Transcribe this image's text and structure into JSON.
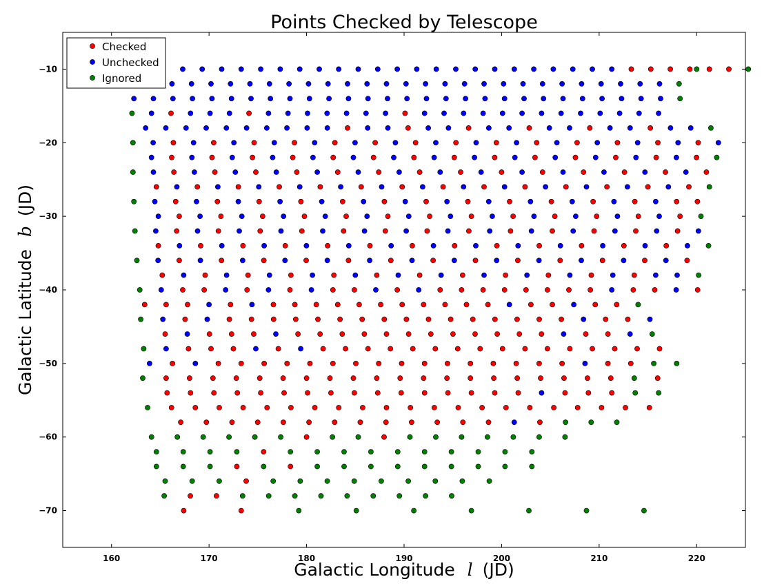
{
  "chart_data": {
    "type": "scatter",
    "title": "Points Checked by Telescope",
    "xlabel": {
      "prefix": "Galactic Longitude",
      "var": "l",
      "suffix": "(JD)"
    },
    "ylabel": {
      "prefix": "Galactic Latitude",
      "var": "b",
      "suffix": "(JD)"
    },
    "xlim": [
      155,
      225
    ],
    "ylim": [
      -75,
      -5
    ],
    "xticks": [
      160,
      170,
      180,
      190,
      200,
      210,
      220
    ],
    "yticks": [
      -10,
      -20,
      -30,
      -40,
      -50,
      -60,
      -70
    ],
    "grid": false,
    "legend": {
      "placement": "top-left"
    },
    "series": [
      {
        "name": "Checked",
        "color": "#ff0000"
      },
      {
        "name": "Unchecked",
        "color": "#0000ff"
      },
      {
        "name": "Ignored",
        "color": "#008000"
      }
    ],
    "rows": [
      {
        "b": -10,
        "x0": 167.3,
        "dx": 2.0,
        "codes": "UUUUUUUUUUUUUUUUUUUUUUUCCCCCCG"
      },
      {
        "b": -12,
        "x0": 166.2,
        "dx": 2.0,
        "codes": "UUUUUUUUUUUUUUUUUUUUUUUUUUG"
      },
      {
        "b": -14,
        "x0": 162.3,
        "dx": 2.0,
        "codes": "UUUUUUUUUUUUUUUUUUUUUUUUUUUUG"
      },
      {
        "b": -16,
        "x0": 162.1,
        "dx": 2.0,
        "codes": "GUCUUUCUUUUUUUCUUUUUUUUUUUUU"
      },
      {
        "b": -18,
        "x0": 163.5,
        "dx": 2.07,
        "codes": "UUUUUUUUUUCUUCUUCUUCUUCUUCUUG"
      },
      {
        "b": -20,
        "x0": 162.2,
        "dx": 2.07,
        "codes": "GUCUCUCUCUCUCUCUCUCUCUCUCUCUCU"
      },
      {
        "b": -22,
        "x0": 164.1,
        "dx": 2.07,
        "codes": "UCUCUCUCUCUCUCUCUCUCUCUCUCUCG"
      },
      {
        "b": -24,
        "x0": 162.2,
        "dx": 2.1,
        "codes": "GUCUCUCUCUCUCUCUCUCUCUCUCUCUC"
      },
      {
        "b": -26,
        "x0": 164.6,
        "dx": 2.1,
        "codes": "CUCUCUCUCUCUCUCUCUCUCUCUCUCG"
      },
      {
        "b": -28,
        "x0": 162.3,
        "dx": 2.14,
        "codes": "GUCUCUCUCUCUCUCUCUCUCUCUCUCC"
      },
      {
        "b": -30,
        "x0": 164.8,
        "dx": 2.14,
        "codes": "UCUCUCUCUCUCUCUCUCUCUCUCUCG"
      },
      {
        "b": -32,
        "x0": 162.4,
        "dx": 2.14,
        "codes": "GUCUCUCUCUCUCUCUCUCUCUCUCUCU"
      },
      {
        "b": -34,
        "x0": 164.8,
        "dx": 2.17,
        "codes": "CUCUCUCUCUCUCUCUCUCUCUCUCUG"
      },
      {
        "b": -36,
        "x0": 162.6,
        "dx": 2.17,
        "codes": "GUCUCUCUCUCUCUCUCUCUCUCUCUC"
      },
      {
        "b": -38,
        "x0": 165.2,
        "dx": 2.2,
        "codes": "CUCUCUCUCUCUCUCUCUCUCUCUUG"
      },
      {
        "b": -40,
        "x0": 162.9,
        "dx": 2.2,
        "codes": "GUCCUCUCUCCUCUCCCCCCCCUCCUC"
      },
      {
        "b": -42,
        "x0": 163.4,
        "dx": 2.2,
        "codes": "CCCUCUCCCCCCCCCCCUCCUCCG"
      },
      {
        "b": -44,
        "x0": 163.0,
        "dx": 2.27,
        "codes": "GUCUCCCCCCCCCCCCCCCCUCCU"
      },
      {
        "b": -46,
        "x0": 165.5,
        "dx": 2.27,
        "codes": "CUCCCUCCCCCCCCCCCCUCCUG"
      },
      {
        "b": -48,
        "x0": 163.3,
        "dx": 2.3,
        "codes": "GUCCCUCUCCCCCCCCCCCCCCCC"
      },
      {
        "b": -50,
        "x0": 163.9,
        "dx": 2.35,
        "codes": "UCUCCCCCCCCCCCCCCCCUCCGG"
      },
      {
        "b": -52,
        "x0": 163.2,
        "dx": 2.4,
        "codes": "GCCCCCCCCCCCCCCCCCCCCGC"
      },
      {
        "b": -54,
        "x0": 165.7,
        "dx": 2.4,
        "codes": "CCCCCCCCCCCCCCCCUCCCGG"
      },
      {
        "b": -56,
        "x0": 163.7,
        "dx": 2.45,
        "codes": "GCCCCCCCCCCCCCCCCCCCCC"
      },
      {
        "b": -58,
        "x0": 167.1,
        "dx": 2.63,
        "codes": "CCCCCCCCCCCCCUCGGG"
      },
      {
        "b": -60,
        "x0": 164.1,
        "dx": 2.65,
        "codes": "GGGGGGCGGCGGGGGGG"
      },
      {
        "b": -62,
        "x0": 164.6,
        "dx": 2.75,
        "codes": "GGGGCGGGGGGGGGG"
      },
      {
        "b": -64,
        "x0": 164.6,
        "dx": 2.75,
        "codes": "GGGCGCGGGGGGGGG"
      },
      {
        "b": -66,
        "x0": 165.5,
        "dx": 2.77,
        "codes": "GGGCGGGGGGGGG"
      },
      {
        "b": -68,
        "x0": 165.4,
        "dx": 2.68,
        "codes": "GCCGGGGGGGGG"
      },
      {
        "b": -70,
        "x0": 167.4,
        "dx": 5.9,
        "codes": "CCGGGGGGG"
      },
      {
        "b": -10,
        "x0": 220.0,
        "dx": 0,
        "codes": "G"
      }
    ]
  }
}
